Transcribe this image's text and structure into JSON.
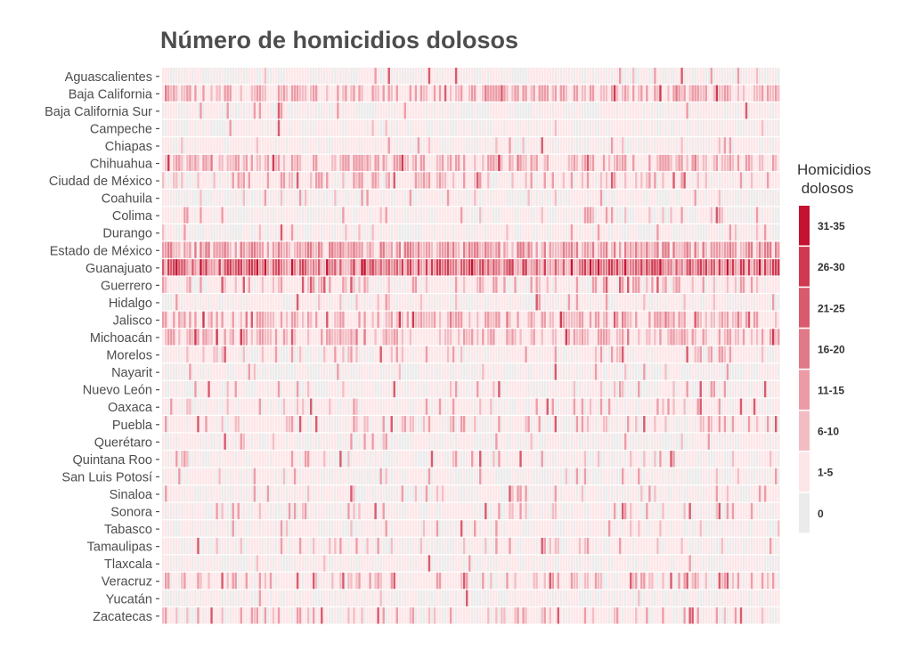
{
  "chart_data": {
    "type": "heatmap",
    "title": "Número de homicidios dolosos",
    "xlabel": "",
    "ylabel": "",
    "y_categories": [
      "Aguascalientes",
      "Baja California",
      "Baja California Sur",
      "Campeche",
      "Chiapas",
      "Chihuahua",
      "Ciudad de México",
      "Coahuila",
      "Colima",
      "Durango",
      "Estado de México",
      "Guanajuato",
      "Guerrero",
      "Hidalgo",
      "Jalisco",
      "Michoacán",
      "Morelos",
      "Nayarit",
      "Nuevo León",
      "Oaxaca",
      "Puebla",
      "Querétaro",
      "Quintana Roo",
      "San Luis Potosí",
      "Sinaloa",
      "Sonora",
      "Tabasco",
      "Tamaulipas",
      "Tlaxcala",
      "Veracruz",
      "Yucatán",
      "Zacatecas"
    ],
    "x_count": 230,
    "x_labels_shown": false,
    "legend": {
      "title": "Homicidios\n dolosos",
      "position": "right",
      "bins": [
        "0",
        "1-5",
        "6-10",
        "11-15",
        "16-20",
        "21-25",
        "26-30",
        "31-35"
      ]
    },
    "colors": [
      "#ebebeb",
      "#fde6e8",
      "#f3bcc3",
      "#ec9ba6",
      "#e17a88",
      "#d85a6c",
      "#cf3a51",
      "#c41230"
    ],
    "grid": false,
    "row_intensity_profile": {
      "Aguascalientes": 0.05,
      "Baja California": 0.55,
      "Baja California Sur": 0.04,
      "Campeche": 0.03,
      "Chiapas": 0.08,
      "Chihuahua": 0.5,
      "Ciudad de México": 0.35,
      "Coahuila": 0.07,
      "Colima": 0.07,
      "Durango": 0.05,
      "Estado de México": 0.85,
      "Guanajuato": 1.0,
      "Guerrero": 0.3,
      "Hidalgo": 0.06,
      "Jalisco": 0.55,
      "Michoacán": 0.55,
      "Morelos": 0.2,
      "Nayarit": 0.03,
      "Nuevo León": 0.12,
      "Oaxaca": 0.22,
      "Puebla": 0.22,
      "Querétaro": 0.04,
      "Quintana Roo": 0.14,
      "San Luis Potosí": 0.06,
      "Sinaloa": 0.14,
      "Sonora": 0.15,
      "Tabasco": 0.08,
      "Tamaulipas": 0.15,
      "Tlaxcala": 0.03,
      "Veracruz": 0.3,
      "Yucatán": 0.02,
      "Zacatecas": 0.22
    }
  }
}
